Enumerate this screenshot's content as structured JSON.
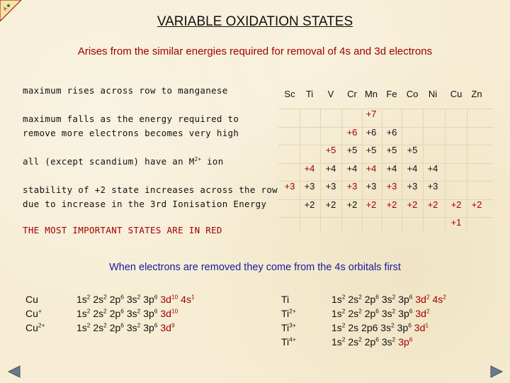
{
  "title": "VARIABLE OXIDATION STATES",
  "subtitle": "Arises from the similar energies required for removal of 4s and 3d electrons",
  "notes": {
    "max_rises": "maximum rises across row to manganese",
    "max_falls_1": "maximum falls as the energy required to",
    "max_falls_2": "remove more electrons becomes very high",
    "m2_prefix": "all (except scandium) have an M",
    "m2_sup": "2+",
    "m2_suffix": " ion",
    "stability_1": "stability of +2 state increases across the row",
    "stability_2": "due to increase in the 3rd Ionisation Energy",
    "important": "THE MOST IMPORTANT STATES ARE IN RED"
  },
  "table": {
    "elements": [
      "Sc",
      "Ti",
      "V",
      "Cr",
      "Mn",
      "Fe",
      "Co",
      "Ni",
      "Cu",
      "Zn"
    ],
    "rows": [
      [
        {
          "col": 4,
          "v": "+7",
          "red": true
        }
      ],
      [
        {
          "col": 3,
          "v": "+6",
          "red": true
        },
        {
          "col": 4,
          "v": "+6"
        },
        {
          "col": 5,
          "v": "+6"
        }
      ],
      [
        {
          "col": 2,
          "v": "+5",
          "red": true
        },
        {
          "col": 3,
          "v": "+5"
        },
        {
          "col": 4,
          "v": "+5"
        },
        {
          "col": 5,
          "v": "+5"
        },
        {
          "col": 6,
          "v": "+5"
        }
      ],
      [
        {
          "col": 1,
          "v": "+4",
          "red": true
        },
        {
          "col": 2,
          "v": "+4"
        },
        {
          "col": 3,
          "v": "+4"
        },
        {
          "col": 4,
          "v": "+4",
          "red": true
        },
        {
          "col": 5,
          "v": "+4"
        },
        {
          "col": 6,
          "v": "+4"
        },
        {
          "col": 7,
          "v": "+4"
        }
      ],
      [
        {
          "col": 0,
          "v": "+3",
          "red": true
        },
        {
          "col": 1,
          "v": "+3"
        },
        {
          "col": 2,
          "v": "+3"
        },
        {
          "col": 3,
          "v": "+3",
          "red": true
        },
        {
          "col": 4,
          "v": "+3"
        },
        {
          "col": 5,
          "v": "+3",
          "red": true
        },
        {
          "col": 6,
          "v": "+3"
        },
        {
          "col": 7,
          "v": "+3"
        }
      ],
      [
        {
          "col": 1,
          "v": "+2"
        },
        {
          "col": 2,
          "v": "+2"
        },
        {
          "col": 3,
          "v": "+2"
        },
        {
          "col": 4,
          "v": "+2",
          "red": true
        },
        {
          "col": 5,
          "v": "+2",
          "red": true
        },
        {
          "col": 6,
          "v": "+2",
          "red": true
        },
        {
          "col": 7,
          "v": "+2",
          "red": true
        },
        {
          "col": 8,
          "v": "+2",
          "red": true
        },
        {
          "col": 9,
          "v": "+2",
          "red": true
        }
      ],
      [
        {
          "col": 8,
          "v": "+1",
          "red": true
        }
      ]
    ]
  },
  "removal_note": "When electrons are removed they come from the 4s orbitals first",
  "copper": {
    "species": [
      {
        "base": "Cu",
        "sup": ""
      },
      {
        "base": "Cu",
        "sup": "+"
      },
      {
        "base": "Cu",
        "sup": "2+"
      }
    ],
    "configs": [
      [
        [
          "1s",
          "2"
        ],
        [
          "2s",
          "2"
        ],
        [
          "2p",
          "6"
        ],
        [
          "3s",
          "2"
        ],
        [
          "3p",
          "6"
        ],
        [
          "3d",
          "10",
          "hl"
        ],
        [
          "4s",
          "1",
          "hl"
        ]
      ],
      [
        [
          "1s",
          "2"
        ],
        [
          "2s",
          "2"
        ],
        [
          "2p",
          "6"
        ],
        [
          "3s",
          "2"
        ],
        [
          "3p",
          "6"
        ],
        [
          "3d",
          "10",
          "hl"
        ]
      ],
      [
        [
          "1s",
          "2"
        ],
        [
          "2s",
          "2"
        ],
        [
          "2p",
          "6"
        ],
        [
          "3s",
          "2"
        ],
        [
          "3p",
          "6"
        ],
        [
          "3d",
          "9",
          "hl"
        ]
      ]
    ]
  },
  "titanium": {
    "species": [
      {
        "base": "Ti",
        "sup": ""
      },
      {
        "base": "Ti",
        "sup": "2+"
      },
      {
        "base": "Ti",
        "sup": "3+"
      },
      {
        "base": "Ti",
        "sup": "4+"
      }
    ],
    "configs": [
      [
        [
          "1s",
          "2"
        ],
        [
          "2s",
          "2"
        ],
        [
          "2p",
          "6"
        ],
        [
          "3s",
          "2"
        ],
        [
          "3p",
          "6"
        ],
        [
          "3d",
          "2",
          "hl"
        ],
        [
          "4s",
          "2",
          "hl"
        ]
      ],
      [
        [
          "1s",
          "2"
        ],
        [
          "2s",
          "2"
        ],
        [
          "2p",
          "6"
        ],
        [
          "3s",
          "2"
        ],
        [
          "3p",
          "6"
        ],
        [
          "3d",
          "2",
          "hl"
        ]
      ],
      [
        [
          "1s",
          "2"
        ],
        [
          "2s",
          ""
        ],
        [
          "2p6",
          ""
        ],
        [
          "3s",
          "2"
        ],
        [
          "3p",
          "6"
        ],
        [
          "3d",
          "1",
          "hl"
        ]
      ],
      [
        [
          "1s",
          "2"
        ],
        [
          "2s",
          "2"
        ],
        [
          "2p",
          "6"
        ],
        [
          "3s",
          "2"
        ],
        [
          "3p",
          "6",
          "hl"
        ]
      ]
    ]
  }
}
